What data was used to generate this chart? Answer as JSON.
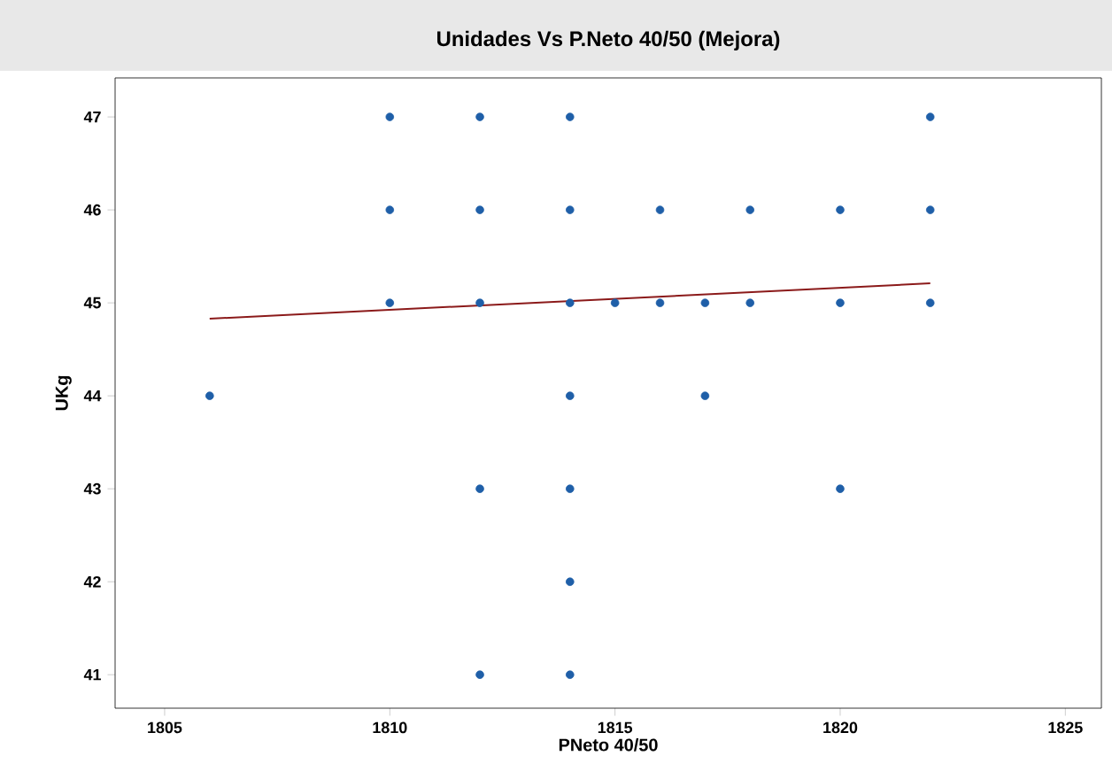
{
  "chart_data": {
    "type": "scatter",
    "title": "Unidades Vs P.Neto 40/50 (Mejora)",
    "xlabel": "PNeto 40/50",
    "ylabel": "UKg",
    "xlim": [
      1803.9,
      1825.8
    ],
    "ylim": [
      40.64,
      47.42
    ],
    "xticks": [
      1805,
      1810,
      1815,
      1820,
      1825
    ],
    "yticks": [
      41,
      42,
      43,
      44,
      45,
      46,
      47
    ],
    "grid": false,
    "series": [
      {
        "color": "#1f5fa8",
        "marker": "circle",
        "x": [
          1806,
          1810,
          1810,
          1810,
          1812,
          1812,
          1812,
          1812,
          1812,
          1814,
          1814,
          1814,
          1814,
          1814,
          1814,
          1814,
          1815,
          1816,
          1816,
          1817,
          1817,
          1818,
          1818,
          1820,
          1820,
          1820,
          1822,
          1822,
          1822
        ],
        "values": [
          44,
          47,
          46,
          45,
          47,
          46,
          45,
          43,
          41,
          47,
          46,
          45,
          44,
          43,
          42,
          41,
          45,
          46,
          45,
          45,
          44,
          46,
          45,
          46,
          45,
          43,
          47,
          46,
          45
        ]
      },
      {
        "type": "line",
        "marker": "none",
        "color": "#8b1a1a",
        "x": [
          1806,
          1822
        ],
        "values": [
          44.83,
          45.21
        ]
      }
    ]
  }
}
